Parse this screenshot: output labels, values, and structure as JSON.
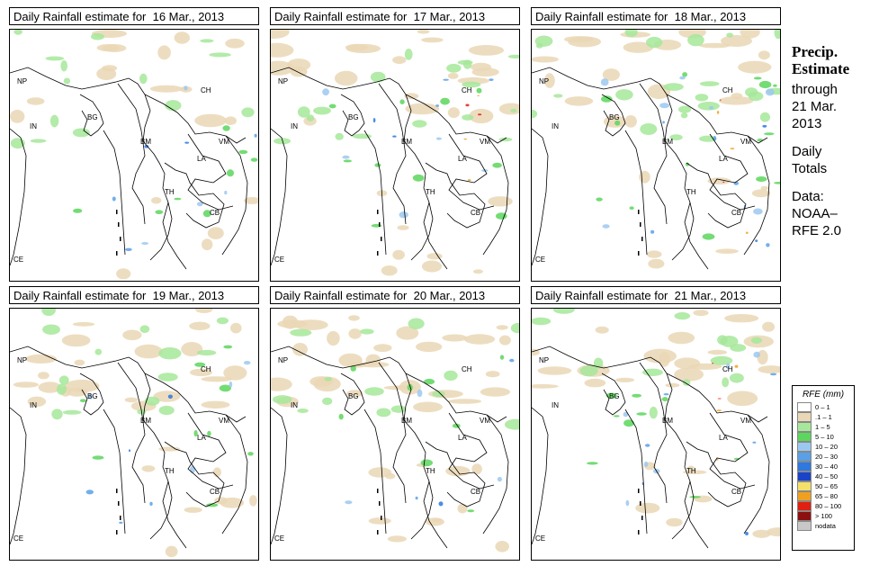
{
  "panels": [
    {
      "title": "Daily Rainfall estimate for  16 Mar., 2013",
      "rain": {
        "green": 0.45,
        "tan": 0.35,
        "blue": 0.25,
        "hot": 0
      }
    },
    {
      "title": "Daily Rainfall estimate for  17 Mar., 2013",
      "rain": {
        "green": 0.55,
        "tan": 0.55,
        "blue": 0.3,
        "hot": 0.05
      }
    },
    {
      "title": "Daily Rainfall estimate for  18 Mar., 2013",
      "rain": {
        "green": 0.75,
        "tan": 0.5,
        "blue": 0.45,
        "hot": 0.1
      }
    },
    {
      "title": "Daily Rainfall estimate for  19 Mar., 2013",
      "rain": {
        "green": 0.5,
        "tan": 0.6,
        "blue": 0.25,
        "hot": 0
      }
    },
    {
      "title": "Daily Rainfall estimate for  20 Mar., 2013",
      "rain": {
        "green": 0.45,
        "tan": 0.75,
        "blue": 0.2,
        "hot": 0
      }
    },
    {
      "title": "Daily Rainfall estimate for  21 Mar., 2013",
      "rain": {
        "green": 0.5,
        "tan": 0.55,
        "blue": 0.4,
        "hot": 0.1
      }
    }
  ],
  "country_labels": [
    "NP",
    "IN",
    "BG",
    "BM",
    "CH",
    "VM",
    "LA",
    "TH",
    "CB",
    "CE"
  ],
  "side": {
    "title_line1": "Precip.",
    "title_line2": "Estimate",
    "through": "through",
    "date_line1": "21 Mar.",
    "date_line2": "2013",
    "daily_line1": "Daily",
    "daily_line2": "Totals",
    "data_line1": "Data:",
    "data_line2": "NOAA–",
    "data_line3": "RFE 2.0"
  },
  "legend": {
    "title": "RFE (mm)",
    "items": [
      {
        "label": "0 – 1",
        "color": "#ffffff"
      },
      {
        "label": ".1 – 1",
        "color": "#ead7b5"
      },
      {
        "label": "1 – 5",
        "color": "#a6e89a"
      },
      {
        "label": "5 – 10",
        "color": "#5cd65c"
      },
      {
        "label": "10 – 20",
        "color": "#9cc8f0"
      },
      {
        "label": "20 – 30",
        "color": "#5aa0e6"
      },
      {
        "label": "30 – 40",
        "color": "#2e78e0"
      },
      {
        "label": "40 – 50",
        "color": "#1a44c8"
      },
      {
        "label": "50 – 65",
        "color": "#f5e06a"
      },
      {
        "label": "65 – 80",
        "color": "#f0a020"
      },
      {
        "label": "80 – 100",
        "color": "#e02010"
      },
      {
        "label": "> 100",
        "color": "#8c1010"
      },
      {
        "label": "nodata",
        "color": "#c8c8c8"
      }
    ]
  }
}
